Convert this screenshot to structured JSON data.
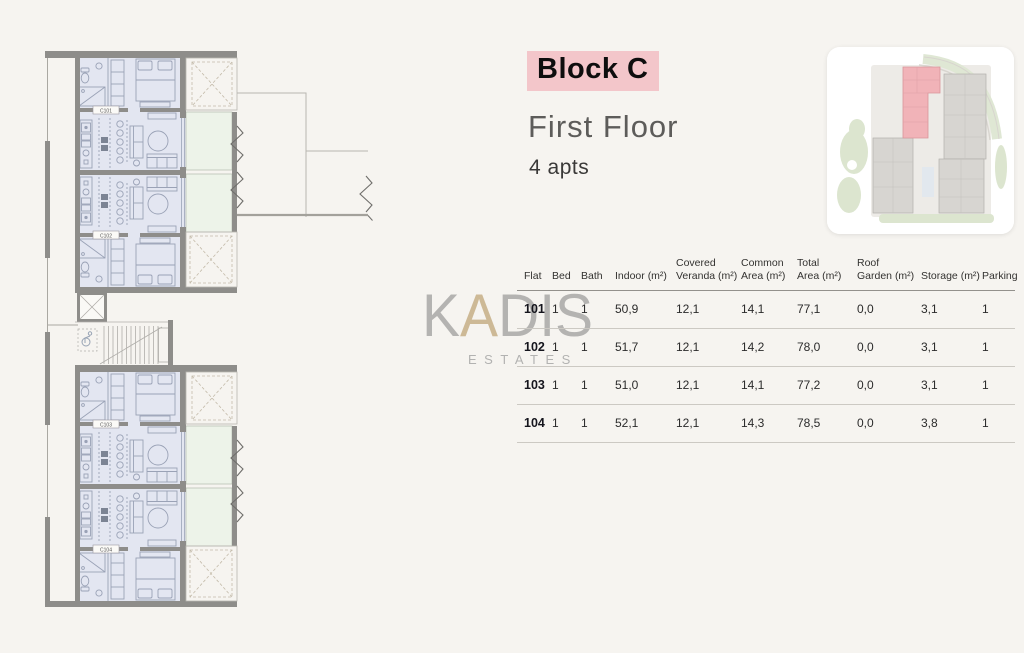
{
  "header": {
    "block_name": "Block C",
    "floor_name": "First Floor",
    "apartment_count": "4 apts",
    "highlight_color": "#f3c6ca"
  },
  "watermark": {
    "letter_k": "K",
    "letter_accent": "A",
    "letters_rest": "DIS",
    "subtitle": "ESTATES"
  },
  "minimap": {
    "highlighted_block": "Block C",
    "highlight_color": "#f1b3b8"
  },
  "floorplan": {
    "unit_labels": [
      "C101",
      "C102",
      "C103",
      "C104"
    ],
    "colors": {
      "interior": "#e3e6f1",
      "veranda": "#edf3e9",
      "wall": "#8e8d8a",
      "background": "#f6f4f0"
    }
  },
  "table": {
    "headers": [
      "Flat",
      "Bed",
      "Bath",
      "Indoor (m²)",
      "Covered\nVeranda (m²)",
      "Common\nArea (m²)",
      "Total\nArea (m²)",
      "Roof\nGarden (m²)",
      "Storage (m²)",
      "Parking"
    ],
    "rows": [
      [
        "101",
        "1",
        "1",
        "50,9",
        "12,1",
        "14,1",
        "77,1",
        "0,0",
        "3,1",
        "1"
      ],
      [
        "102",
        "1",
        "1",
        "51,7",
        "12,1",
        "14,2",
        "78,0",
        "0,0",
        "3,1",
        "1"
      ],
      [
        "103",
        "1",
        "1",
        "51,0",
        "12,1",
        "14,1",
        "77,2",
        "0,0",
        "3,1",
        "1"
      ],
      [
        "104",
        "1",
        "1",
        "52,1",
        "12,1",
        "14,3",
        "78,5",
        "0,0",
        "3,8",
        "1"
      ]
    ]
  }
}
